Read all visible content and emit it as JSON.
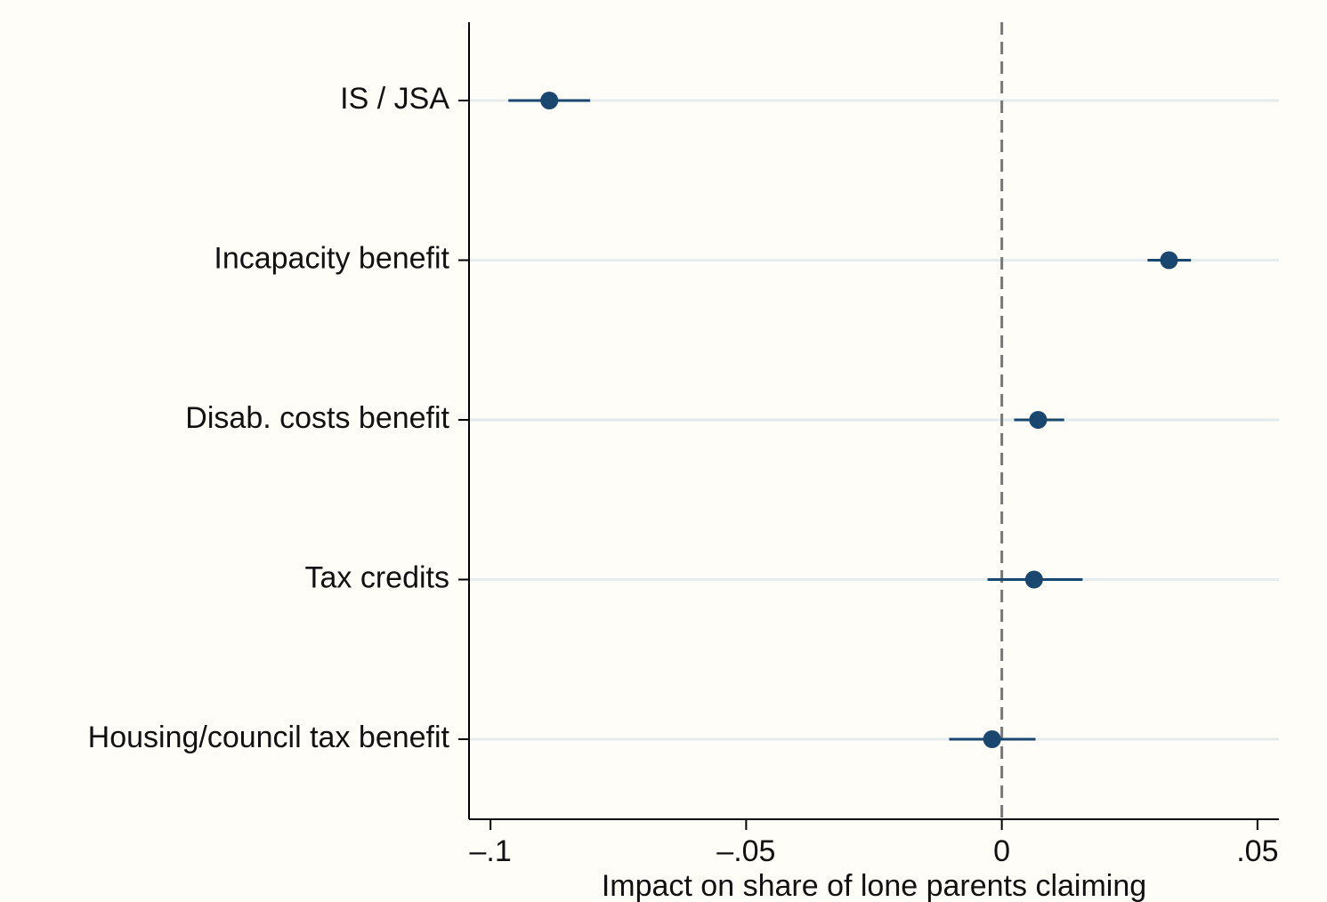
{
  "chart_data": {
    "type": "coefplot",
    "x_label": "Impact on share of lone parents claiming",
    "categories": [
      "IS / JSA",
      "Incapacity benefit",
      "Disab. costs benefit",
      "Tax credits",
      "Housing/council tax benefit"
    ],
    "values": [
      -0.0885,
      0.0327,
      0.0071,
      0.0063,
      -0.0019
    ],
    "ci_lower": [
      -0.0965,
      0.0285,
      0.0024,
      -0.0028,
      -0.0103
    ],
    "ci_upper": [
      -0.0805,
      0.037,
      0.0122,
      0.0158,
      0.0066
    ],
    "color": "#1a476f",
    "xlim": [
      -0.1042,
      0.0542
    ],
    "xticks": [
      {
        "value": -0.1,
        "label": "–.1"
      },
      {
        "value": -0.05,
        "label": "–.05"
      },
      0,
      {
        "value": 0.05,
        "label": ".05"
      }
    ],
    "reference_line": 0,
    "grid": true
  }
}
